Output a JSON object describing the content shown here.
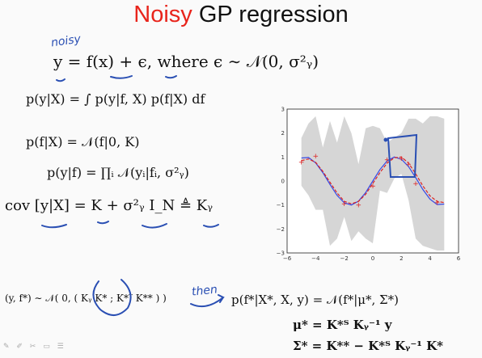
{
  "title": {
    "highlight": "Noisy",
    "rest": " GP regression"
  },
  "annotations": {
    "noisy_note": "noisy",
    "then_note": "then"
  },
  "equations": {
    "model": "y  =  f(x) + ϵ,  where  ϵ ∼ 𝒩(0, σ²ᵧ)",
    "likelihood_integral": "p(y|X) = ∫ p(y|f, X) p(f|X) df",
    "prior": "p(f|X) = 𝒩(f|0, K)",
    "likelihood": "p(y|f) = ∏ᵢ 𝒩(yᵢ|fᵢ, σ²ᵧ)",
    "covariance": "cov [y|X] = K + σ²ᵧ I_N ≜ Kᵧ",
    "joint": "(y, f*) ∼ 𝒩( 0, ( Kᵧ  K* ; K*ᵀ  K** ) )",
    "predictive": "p(f*|X*, X, y)   =   𝒩(f*|μ*, Σ*)",
    "mean": "μ*   =   K*ᵀ Kᵧ⁻¹ y",
    "cov": "Σ*   =   K** − K*ᵀ Kᵧ⁻¹ K*"
  },
  "chart_data": {
    "type": "line",
    "xlim": [
      -6,
      6
    ],
    "ylim": [
      -3,
      3
    ],
    "xticks": [
      "−6",
      "−4",
      "−2",
      "0",
      "2",
      "4",
      "6"
    ],
    "yticks": [
      "3",
      "2",
      "1",
      "0",
      "−1",
      "−2",
      "−3"
    ],
    "x": [
      -5,
      -4.5,
      -4,
      -3.5,
      -3,
      -2.5,
      -2,
      -1.5,
      -1,
      -0.5,
      0,
      0.5,
      1,
      1.5,
      2,
      2.5,
      3,
      3.5,
      4,
      4.5,
      5
    ],
    "series": [
      {
        "values": [
          0.96,
          0.98,
          0.76,
          0.35,
          -0.14,
          -0.6,
          -0.91,
          -1.0,
          -0.84,
          -0.48,
          0.0,
          0.48,
          0.84,
          1.0,
          0.91,
          0.6,
          0.14,
          -0.35,
          -0.76,
          -0.98,
          -0.96
        ],
        "color": "#3548e6",
        "style": "solid"
      },
      {
        "values": [
          0.85,
          0.92,
          0.78,
          0.4,
          -0.05,
          -0.5,
          -0.85,
          -0.95,
          -0.85,
          -0.55,
          -0.1,
          0.35,
          0.75,
          0.97,
          1.0,
          0.75,
          0.3,
          -0.2,
          -0.62,
          -0.85,
          -0.9
        ],
        "color": "#dd2222",
        "style": "dashed"
      },
      {
        "name": "uncertainty-band",
        "upper": [
          1.8,
          2.4,
          2.7,
          1.4,
          2.5,
          1.6,
          2.7,
          2.0,
          0.7,
          2.2,
          2.3,
          2.2,
          1.6,
          1.8,
          2.0,
          2.6,
          2.6,
          2.4,
          2.7,
          2.7,
          2.6
        ],
        "lower": [
          -0.2,
          -0.6,
          -1.2,
          -1.2,
          -2.7,
          -2.4,
          -1.5,
          -2.5,
          -2.1,
          -2.4,
          -2.6,
          -0.4,
          -0.5,
          0.1,
          0.3,
          -0.8,
          -2.4,
          -2.7,
          -2.8,
          -2.9,
          -2.9
        ],
        "color": "#d6d6d6"
      }
    ],
    "training_points": {
      "x": [
        -5,
        -4,
        -2,
        -1,
        0,
        1,
        2,
        2.5,
        3,
        4.5
      ],
      "y": [
        0.8,
        1.05,
        -0.95,
        -1.0,
        -0.2,
        0.9,
        0.95,
        0.7,
        -0.1,
        -0.9
      ]
    },
    "grid": false
  },
  "footer_icons": [
    "pencil-icon",
    "pen-icon",
    "eraser-icon",
    "highlighter-icon",
    "menu-icon"
  ],
  "footer_text": "✎ ✐ ✂ ▭ ☰"
}
